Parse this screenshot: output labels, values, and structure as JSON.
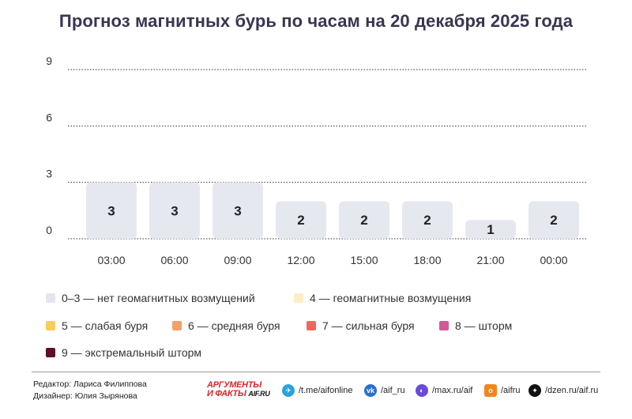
{
  "title": "Прогноз магнитных бурь по часам на 20 декабря 2025 года",
  "chart_data": {
    "type": "bar",
    "categories": [
      "03:00",
      "06:00",
      "09:00",
      "12:00",
      "15:00",
      "18:00",
      "21:00",
      "00:00"
    ],
    "values": [
      3,
      3,
      3,
      2,
      2,
      2,
      1,
      2
    ],
    "yticks": [
      0,
      3,
      6,
      9
    ],
    "ylim": [
      0,
      9
    ],
    "grid": "dotted horizontal",
    "bar_color": "#e6e8f0",
    "data_labels": true
  },
  "legend": [
    {
      "label": "0–3 — нет геомагнитных возмущений",
      "color": "#e4e6ee"
    },
    {
      "label": "4 — геомагнитные возмущения",
      "color": "#fbefc6"
    },
    {
      "label": "5 — слабая буря",
      "color": "#f7cd60"
    },
    {
      "label": "6 — средняя буря",
      "color": "#f4a06a"
    },
    {
      "label": "7 — сильная буря",
      "color": "#ec6a5c"
    },
    {
      "label": "8 — шторм",
      "color": "#d15a96"
    },
    {
      "label": "9 — экстремальный шторм",
      "color": "#5e0f2c"
    }
  ],
  "footer": {
    "editor": "Редактор: Лариса Филиппова",
    "designer": "Дизайнер: Юлия Зырянова",
    "logo_line1": "АРГУМЕНТЫ",
    "logo_line2": "И ФАКТЫ",
    "logo_site": "AIF.RU",
    "social": [
      {
        "icon": "telegram-icon",
        "text": "/t.me/aifonline",
        "color": "#2aa3dc"
      },
      {
        "icon": "vk-icon",
        "text": "/aif_ru",
        "color": "#2a6fd6"
      },
      {
        "icon": "max-icon",
        "text": "/max.ru/aif",
        "color": "#6a4bd8"
      },
      {
        "icon": "odnoklassniki-icon",
        "text": "/aifru",
        "color": "#f0871d"
      },
      {
        "icon": "dzen-icon",
        "text": "/dzen.ru/aif.ru",
        "color": "#111111"
      }
    ]
  }
}
